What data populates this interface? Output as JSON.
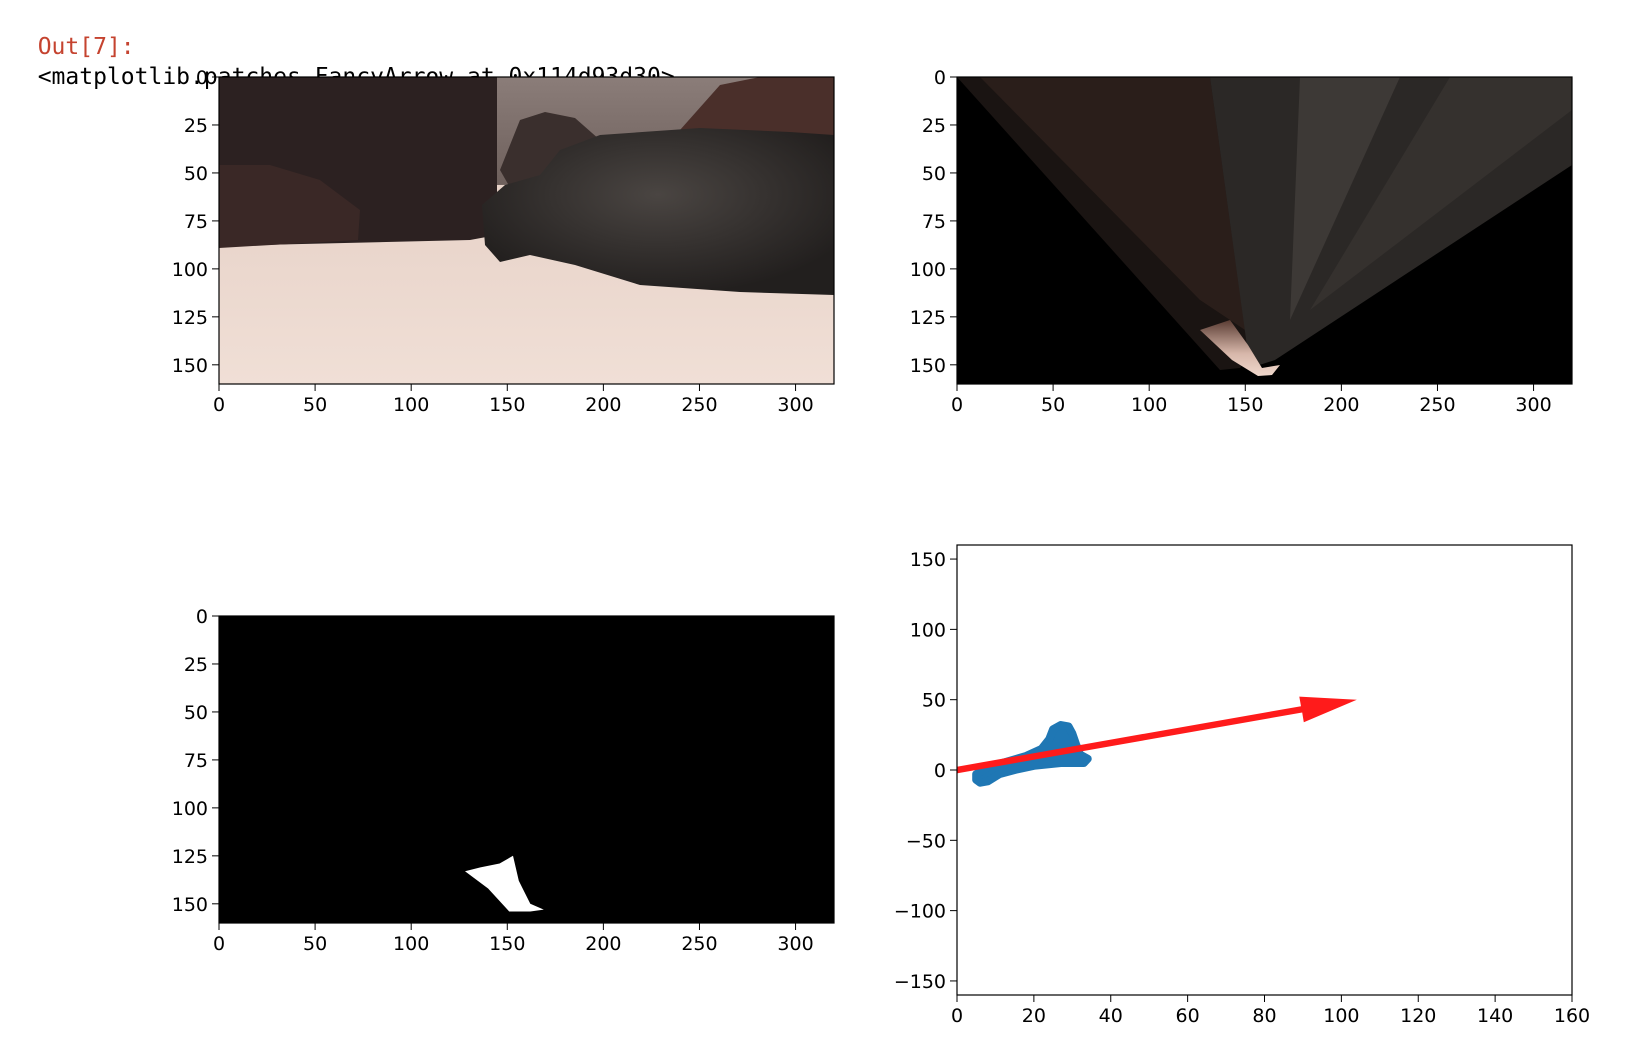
{
  "output": {
    "prompt": "Out[7]:",
    "value": "<matplotlib.patches.FancyArrow at 0x114d93d30>"
  },
  "chart_data": [
    {
      "type": "image",
      "subplot": "top-left",
      "content": "camera view: rocky terrain, dark boulders, light sandy ground",
      "x_ticks": [
        0,
        50,
        100,
        150,
        200,
        250,
        300
      ],
      "y_ticks": [
        0,
        25,
        50,
        75,
        100,
        125,
        150
      ],
      "xlim": [
        0,
        320
      ],
      "ylim": [
        160,
        0
      ]
    },
    {
      "type": "image",
      "subplot": "top-right",
      "content": "perspective-transformed (warped) top-down view",
      "x_ticks": [
        0,
        50,
        100,
        150,
        200,
        250,
        300
      ],
      "y_ticks": [
        0,
        25,
        50,
        75,
        100,
        125,
        150
      ],
      "xlim": [
        0,
        320
      ],
      "ylim": [
        160,
        0
      ]
    },
    {
      "type": "image",
      "subplot": "bottom-left",
      "content": "binary threshold mask (white navigable region on black)",
      "x_ticks": [
        0,
        50,
        100,
        150,
        200,
        250,
        300
      ],
      "y_ticks": [
        0,
        25,
        50,
        75,
        100,
        125,
        150
      ],
      "xlim": [
        0,
        320
      ],
      "ylim": [
        160,
        0
      ],
      "mask_polygon": [
        [
          128,
          133
        ],
        [
          136,
          131
        ],
        [
          146,
          129
        ],
        [
          153,
          125
        ],
        [
          156,
          138
        ],
        [
          162,
          150
        ],
        [
          169,
          153
        ],
        [
          162,
          154
        ],
        [
          151,
          154
        ],
        [
          140,
          142
        ]
      ]
    },
    {
      "type": "scatter",
      "subplot": "bottom-right",
      "x_ticks": [
        0,
        20,
        40,
        60,
        80,
        100,
        120,
        140,
        160
      ],
      "y_ticks": [
        150,
        100,
        50,
        0,
        -50,
        -100,
        -150
      ],
      "y_tick_labels": [
        "150",
        "100",
        "50",
        "0",
        "−50",
        "−100",
        "−150"
      ],
      "xlim": [
        0,
        160
      ],
      "ylim": [
        -160,
        160
      ],
      "scatter_color": "#1f77b4",
      "scatter_outline": [
        [
          5,
          -3
        ],
        [
          8,
          2
        ],
        [
          13,
          6
        ],
        [
          18,
          10
        ],
        [
          22,
          15
        ],
        [
          24,
          22
        ],
        [
          25,
          29
        ],
        [
          27,
          32
        ],
        [
          29,
          31
        ],
        [
          30,
          26
        ],
        [
          31,
          18
        ],
        [
          32,
          11
        ],
        [
          34,
          8
        ],
        [
          33,
          5
        ],
        [
          27,
          5
        ],
        [
          20,
          3
        ],
        [
          15,
          0
        ],
        [
          11,
          -3
        ],
        [
          8,
          -8
        ],
        [
          6,
          -9
        ],
        [
          5,
          -7
        ]
      ],
      "arrow": {
        "x": 0,
        "y": 0,
        "dx": 104,
        "dy": 50,
        "color": "#ff1b1b"
      }
    }
  ]
}
